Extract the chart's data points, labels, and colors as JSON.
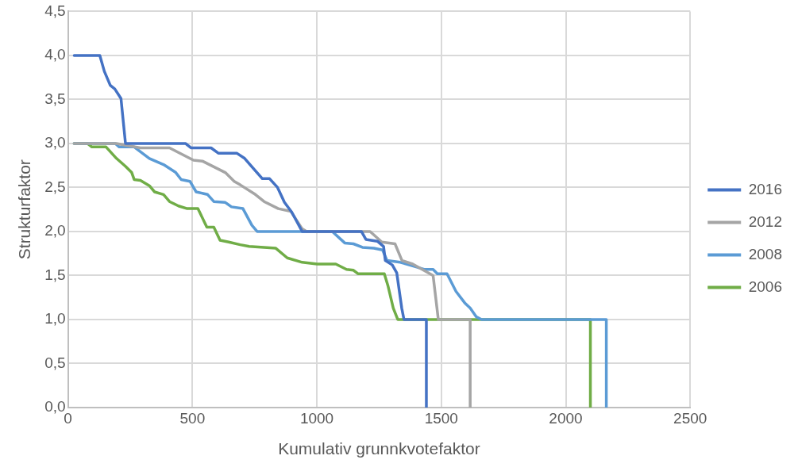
{
  "chart_data": {
    "type": "line",
    "xlabel": "Kumulativ grunnkvotefaktor",
    "ylabel": "Strukturfaktor",
    "xlim": [
      0,
      2500
    ],
    "xticks": [
      0,
      500,
      1000,
      1500,
      2000,
      2500
    ],
    "ylim": [
      0,
      4.5
    ],
    "yticks": [
      {
        "value": 0,
        "label": "0,0"
      },
      {
        "value": 0.5,
        "label": "0,5"
      },
      {
        "value": 1,
        "label": "1,0"
      },
      {
        "value": 1.5,
        "label": "1,5"
      },
      {
        "value": 2,
        "label": "2,0"
      },
      {
        "value": 2.5,
        "label": "2,5"
      },
      {
        "value": 3,
        "label": "3,0"
      },
      {
        "value": 3.5,
        "label": "3,5"
      },
      {
        "value": 4,
        "label": "4,0"
      },
      {
        "value": 4.5,
        "label": "4,5"
      }
    ],
    "grid": true,
    "legend": "right",
    "marker": "none",
    "line_style": "solid",
    "series": [
      {
        "name": "2016",
        "color": "#4472c4",
        "x": [
          25,
          128,
          146,
          170,
          188,
          213,
          231,
          472,
          494,
          575,
          604,
          678,
          710,
          728,
          781,
          810,
          842,
          870,
          899,
          941,
          1179,
          1197,
          1243,
          1268,
          1275,
          1303,
          1321,
          1341,
          1350,
          1440,
          1440
        ],
        "values": [
          4.0,
          4.0,
          3.82,
          3.66,
          3.62,
          3.51,
          3.0,
          3.0,
          2.95,
          2.95,
          2.89,
          2.89,
          2.83,
          2.77,
          2.6,
          2.6,
          2.5,
          2.33,
          2.22,
          2.0,
          2.0,
          1.91,
          1.89,
          1.83,
          1.67,
          1.62,
          1.53,
          1.13,
          1.0,
          1.0,
          0
        ]
      },
      {
        "name": "2012",
        "color": "#a5a5a5",
        "x": [
          25,
          195,
          291,
          408,
          504,
          540,
          632,
          668,
          692,
          753,
          788,
          845,
          895,
          941,
          959,
          1214,
          1261,
          1314,
          1342,
          1385,
          1467,
          1488,
          1616,
          1616
        ],
        "values": [
          3.0,
          3.0,
          2.95,
          2.95,
          2.81,
          2.8,
          2.67,
          2.57,
          2.53,
          2.42,
          2.34,
          2.26,
          2.23,
          2.03,
          2.0,
          2.0,
          1.88,
          1.86,
          1.67,
          1.63,
          1.5,
          1.0,
          1.0,
          0
        ]
      },
      {
        "name": "2008",
        "color": "#5b9bd5",
        "x": [
          25,
          190,
          206,
          266,
          327,
          384,
          433,
          455,
          490,
          515,
          561,
          586,
          632,
          657,
          703,
          739,
          760,
          1062,
          1112,
          1147,
          1183,
          1229,
          1264,
          1282,
          1335,
          1396,
          1431,
          1467,
          1484,
          1523,
          1559,
          1594,
          1616,
          1641,
          1662,
          2163,
          2163
        ],
        "values": [
          3.0,
          3.0,
          2.96,
          2.96,
          2.83,
          2.76,
          2.67,
          2.59,
          2.57,
          2.45,
          2.42,
          2.34,
          2.33,
          2.28,
          2.26,
          2.07,
          2.0,
          2.0,
          1.87,
          1.86,
          1.82,
          1.81,
          1.79,
          1.67,
          1.65,
          1.6,
          1.57,
          1.57,
          1.52,
          1.52,
          1.32,
          1.19,
          1.13,
          1.03,
          1.0,
          1.0,
          0
        ]
      },
      {
        "name": "2006",
        "color": "#70ad47",
        "x": [
          25,
          78,
          96,
          153,
          195,
          231,
          256,
          266,
          291,
          327,
          348,
          384,
          408,
          444,
          479,
          522,
          558,
          586,
          611,
          646,
          692,
          728,
          835,
          881,
          941,
          1001,
          1076,
          1119,
          1147,
          1165,
          1271,
          1286,
          1307,
          1325,
          2099,
          2099
        ],
        "values": [
          3.0,
          3.0,
          2.96,
          2.96,
          2.83,
          2.74,
          2.67,
          2.59,
          2.58,
          2.52,
          2.45,
          2.42,
          2.34,
          2.29,
          2.26,
          2.26,
          2.05,
          2.05,
          1.9,
          1.88,
          1.85,
          1.83,
          1.81,
          1.7,
          1.65,
          1.63,
          1.63,
          1.57,
          1.56,
          1.52,
          1.52,
          1.38,
          1.13,
          1.0,
          1.0,
          0
        ]
      }
    ]
  }
}
